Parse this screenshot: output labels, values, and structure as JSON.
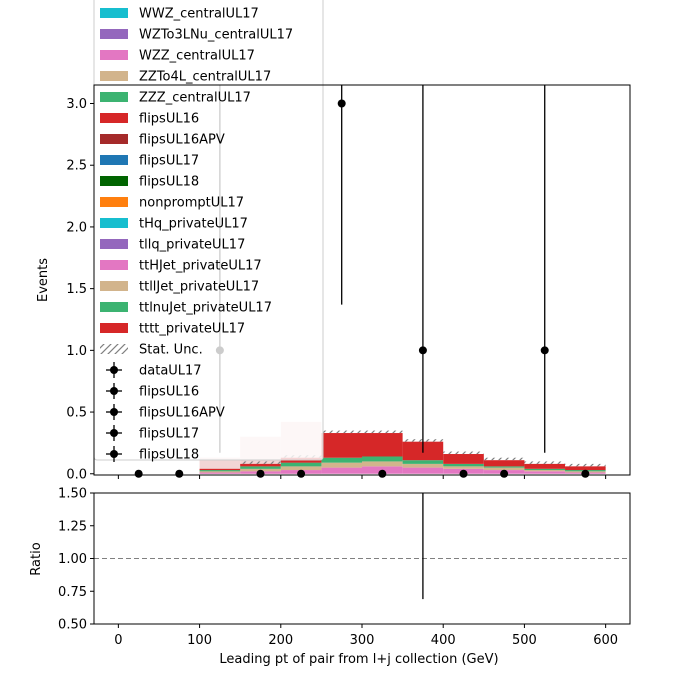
{
  "chart_data": [
    {
      "type": "bar",
      "subtype": "stacked-histogram",
      "xlabel": "",
      "ylabel": "Events",
      "xlim": [
        -30,
        630
      ],
      "ylim": [
        -0.01,
        3.15
      ],
      "xticks": [
        0,
        100,
        200,
        300,
        400,
        500,
        600
      ],
      "yticks": [
        0.0,
        0.5,
        1.0,
        1.5,
        2.0,
        2.5,
        3.0
      ],
      "ytick_labels": [
        "0.0",
        "0.5",
        "1.0",
        "1.5",
        "2.0",
        "2.5",
        "3.0"
      ],
      "bin_edges": [
        0,
        50,
        100,
        150,
        200,
        250,
        300,
        350,
        400,
        450,
        500,
        550,
        600
      ],
      "series": [
        {
          "name": "WZZ_centralUL17",
          "color": "#e377c2",
          "values": [
            0,
            0,
            0.01,
            0.02,
            0.03,
            0.05,
            0.06,
            0.05,
            0.04,
            0.03,
            0.02,
            0.01
          ]
        },
        {
          "name": "ZZTo4L_centralUL17",
          "color": "#d2b48c",
          "values": [
            0,
            0,
            0.01,
            0.02,
            0.03,
            0.04,
            0.04,
            0.03,
            0.02,
            0.02,
            0.01,
            0.01
          ]
        },
        {
          "name": "ZZZ_centralUL17",
          "color": "#3cb371",
          "values": [
            0,
            0,
            0.01,
            0.02,
            0.03,
            0.04,
            0.04,
            0.03,
            0.02,
            0.01,
            0.01,
            0.01
          ]
        },
        {
          "name": "tttt_privateUL17",
          "color": "#d62728",
          "values": [
            0,
            0,
            0.01,
            0.02,
            0.04,
            0.2,
            0.19,
            0.15,
            0.08,
            0.05,
            0.04,
            0.03
          ]
        }
      ],
      "overlay_bins": [
        {
          "x0": 100,
          "x1": 150,
          "top": 0.13,
          "color": "#f2d5d5"
        },
        {
          "x0": 150,
          "x1": 200,
          "top": 0.3,
          "color": "#f2d5d5"
        },
        {
          "x0": 200,
          "x1": 250,
          "top": 0.42,
          "color": "#f2d5d5"
        }
      ],
      "data_points": {
        "name": "dataUL17",
        "x": [
          25,
          75,
          125,
          175,
          225,
          275,
          325,
          375,
          425,
          475,
          525,
          575
        ],
        "y": [
          0,
          0,
          1,
          0,
          0,
          3,
          0,
          1,
          0,
          0,
          1,
          0
        ],
        "yerr_low": [
          0,
          0,
          0.83,
          0,
          0,
          1.63,
          0,
          0.83,
          0,
          0,
          0.83,
          0
        ],
        "yerr_high": [
          0,
          0,
          2.3,
          0,
          0,
          2.9,
          0,
          2.3,
          0,
          0,
          2.3,
          0
        ]
      },
      "legend": {
        "position": "upper-left",
        "entries": [
          {
            "label": "WWZ_centralUL17",
            "kind": "patch",
            "color": "#17becf"
          },
          {
            "label": "WZTo3LNu_centralUL17",
            "kind": "patch",
            "color": "#9467bd"
          },
          {
            "label": "WZZ_centralUL17",
            "kind": "patch",
            "color": "#e377c2"
          },
          {
            "label": "ZZTo4L_centralUL17",
            "kind": "patch",
            "color": "#d2b48c"
          },
          {
            "label": "ZZZ_centralUL17",
            "kind": "patch",
            "color": "#3cb371"
          },
          {
            "label": "flipsUL16",
            "kind": "patch",
            "color": "#d62728"
          },
          {
            "label": "flipsUL16APV",
            "kind": "patch",
            "color": "#a52a2a"
          },
          {
            "label": "flipsUL17",
            "kind": "patch",
            "color": "#1f77b4"
          },
          {
            "label": "flipsUL18",
            "kind": "patch",
            "color": "#006400"
          },
          {
            "label": "nonpromptUL17",
            "kind": "patch",
            "color": "#ff7f0e"
          },
          {
            "label": "tHq_privateUL17",
            "kind": "patch",
            "color": "#17becf"
          },
          {
            "label": "tllq_privateUL17",
            "kind": "patch",
            "color": "#9467bd"
          },
          {
            "label": "ttHJet_privateUL17",
            "kind": "patch",
            "color": "#e377c2"
          },
          {
            "label": "ttllJet_privateUL17",
            "kind": "patch",
            "color": "#d2b48c"
          },
          {
            "label": "ttlnuJet_privateUL17",
            "kind": "patch",
            "color": "#3cb371"
          },
          {
            "label": "tttt_privateUL17",
            "kind": "patch",
            "color": "#d62728"
          },
          {
            "label": "Stat. Unc.",
            "kind": "hatch",
            "color": "#808080"
          },
          {
            "label": "dataUL17",
            "kind": "marker",
            "color": "#000000"
          },
          {
            "label": "flipsUL16",
            "kind": "marker",
            "color": "#000000"
          },
          {
            "label": "flipsUL16APV",
            "kind": "marker",
            "color": "#000000"
          },
          {
            "label": "flipsUL17",
            "kind": "marker",
            "color": "#000000"
          },
          {
            "label": "flipsUL18",
            "kind": "marker",
            "color": "#000000"
          }
        ]
      }
    },
    {
      "type": "scatter",
      "subtype": "ratio-panel",
      "xlabel": "Leading pt of pair from l+j collection (GeV)",
      "ylabel": "Ratio",
      "xlim": [
        -30,
        630
      ],
      "ylim": [
        0.5,
        1.5
      ],
      "xticks": [
        0,
        100,
        200,
        300,
        400,
        500,
        600
      ],
      "yticks": [
        0.5,
        0.75,
        1.0,
        1.25,
        1.5
      ],
      "ytick_labels": [
        "0.50",
        "0.75",
        "1.00",
        "1.25",
        "1.50"
      ],
      "reference_line": 1.0,
      "error_bars": [
        {
          "x": 375,
          "low": 0.69,
          "high": 1.5
        }
      ]
    }
  ]
}
